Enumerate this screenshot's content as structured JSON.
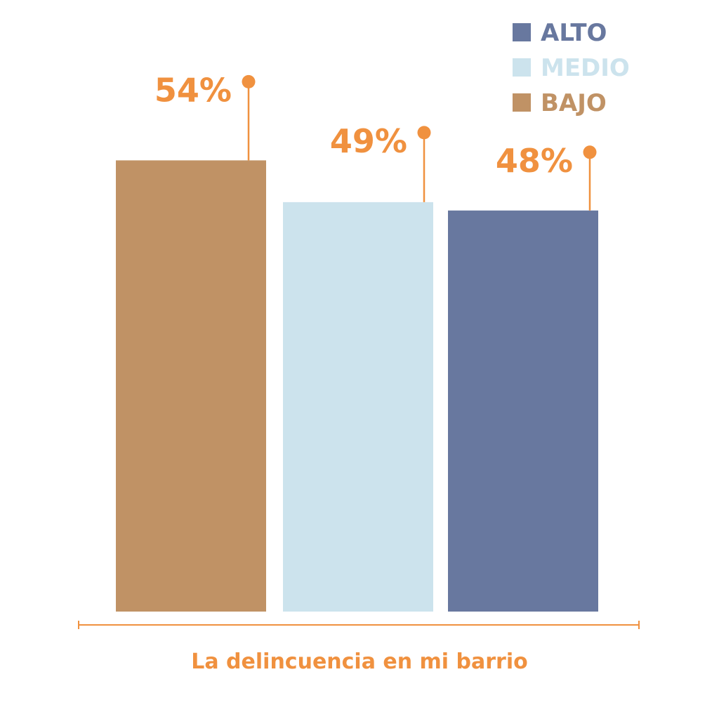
{
  "chart_data": {
    "type": "bar",
    "title": "",
    "xlabel": "La delincuencia en mi barrio",
    "ylabel": "",
    "ylim": [
      0,
      100
    ],
    "grid": false,
    "legend_position": "top-right",
    "categories": [
      "BAJO",
      "MEDIO",
      "ALTO"
    ],
    "values": [
      54,
      49,
      48
    ],
    "value_labels": [
      "54%",
      "49%",
      "48%"
    ],
    "colors": [
      "#c09265",
      "#cce3ed",
      "#68789f"
    ],
    "label_color": "#f0913f",
    "legend": [
      {
        "name": "ALTO",
        "color": "#68789f"
      },
      {
        "name": "MEDIO",
        "color": "#cce3ed"
      },
      {
        "name": "BAJO",
        "color": "#c09265"
      }
    ]
  }
}
